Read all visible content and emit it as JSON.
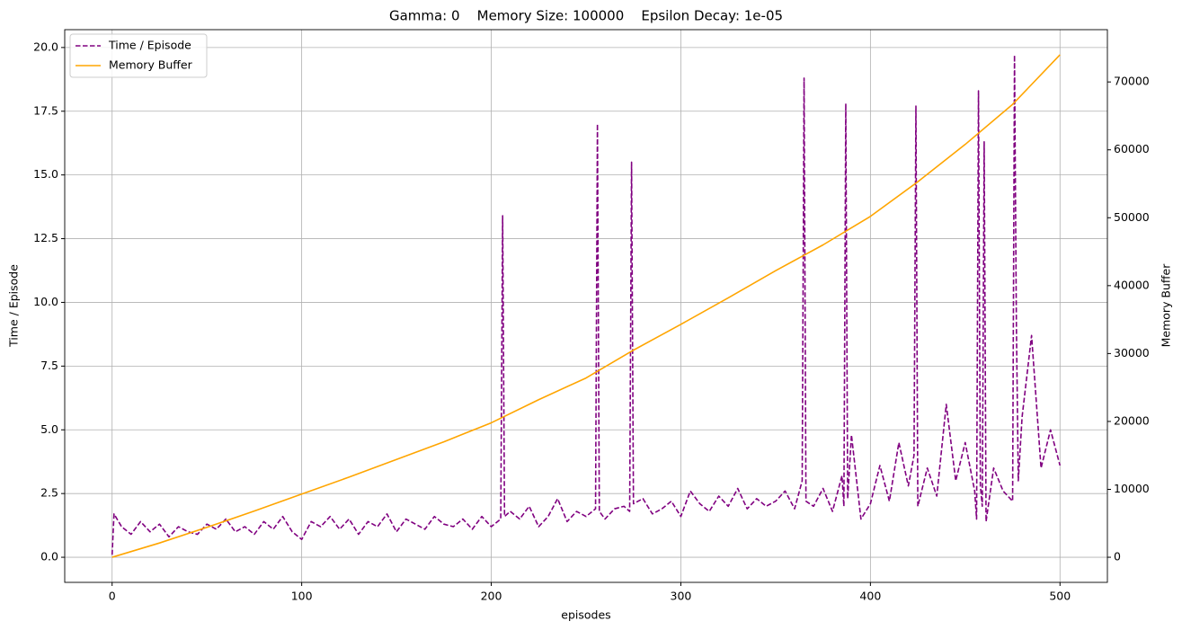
{
  "chart_data": {
    "type": "line",
    "title": "Gamma: 0    Memory Size: 100000    Epsilon Decay: 1e-05",
    "xlabel": "episodes",
    "ylabel": "Time / Episode",
    "y2label": "Memory Buffer",
    "xlim": [
      -25,
      525
    ],
    "xticks": [
      0,
      100,
      200,
      300,
      400,
      500
    ],
    "ylim": [
      -0.985,
      20.7
    ],
    "yticks": [
      {
        "value": 0,
        "label": "0.0"
      },
      2.5,
      {
        "value": 5,
        "label": "5.0"
      },
      7.5,
      {
        "value": 10,
        "label": "10.0"
      },
      12.5,
      {
        "value": 15,
        "label": "15.0"
      },
      17.5,
      {
        "value": 20,
        "label": "20.0"
      }
    ],
    "y2lim": [
      -3700,
      77700
    ],
    "y2ticks": [
      0,
      10000,
      20000,
      30000,
      40000,
      50000,
      60000,
      70000
    ],
    "grid": true,
    "legend": "upper left",
    "series": [
      {
        "name": "Time / Episode",
        "color": "#800080",
        "dashed": true,
        "x": [
          0,
          1,
          5,
          10,
          15,
          20,
          25,
          30,
          35,
          40,
          45,
          50,
          55,
          60,
          65,
          70,
          75,
          80,
          85,
          90,
          95,
          100,
          105,
          110,
          115,
          120,
          125,
          130,
          135,
          140,
          145,
          150,
          155,
          160,
          165,
          170,
          175,
          180,
          185,
          190,
          195,
          200,
          205,
          206,
          207,
          210,
          215,
          220,
          225,
          230,
          235,
          240,
          245,
          250,
          255,
          256,
          257,
          260,
          265,
          270,
          273,
          274,
          275,
          280,
          285,
          290,
          295,
          300,
          305,
          310,
          315,
          320,
          325,
          330,
          335,
          340,
          345,
          350,
          355,
          360,
          364,
          365,
          366,
          370,
          375,
          380,
          385,
          386,
          387,
          388,
          390,
          395,
          400,
          405,
          410,
          415,
          420,
          423,
          424,
          425,
          430,
          435,
          440,
          445,
          450,
          455,
          456,
          457,
          458,
          459,
          460,
          461,
          465,
          470,
          475,
          476,
          477,
          478,
          480,
          485,
          490,
          495,
          500
        ],
        "values": [
          0.1,
          1.7,
          1.2,
          0.9,
          1.4,
          1.0,
          1.3,
          0.8,
          1.2,
          1.0,
          0.9,
          1.3,
          1.1,
          1.5,
          1.0,
          1.2,
          0.9,
          1.4,
          1.1,
          1.6,
          1.0,
          0.7,
          1.4,
          1.2,
          1.6,
          1.1,
          1.5,
          0.9,
          1.4,
          1.2,
          1.7,
          1.0,
          1.5,
          1.3,
          1.1,
          1.6,
          1.3,
          1.2,
          1.5,
          1.1,
          1.6,
          1.2,
          1.5,
          13.4,
          1.6,
          1.8,
          1.5,
          2.0,
          1.2,
          1.6,
          2.3,
          1.4,
          1.8,
          1.6,
          1.9,
          17.0,
          1.8,
          1.5,
          1.9,
          2.0,
          1.8,
          15.5,
          2.1,
          2.3,
          1.7,
          1.9,
          2.2,
          1.6,
          2.6,
          2.1,
          1.8,
          2.4,
          2.0,
          2.7,
          1.9,
          2.3,
          2.0,
          2.2,
          2.6,
          1.9,
          3.0,
          18.8,
          2.2,
          2.0,
          2.7,
          1.8,
          3.2,
          2.0,
          17.8,
          2.3,
          4.8,
          1.5,
          2.1,
          3.6,
          2.2,
          4.5,
          2.8,
          4.0,
          17.7,
          2.0,
          3.5,
          2.4,
          6.0,
          3.0,
          4.5,
          2.6,
          1.5,
          18.3,
          2.8,
          2.0,
          16.3,
          1.4,
          3.5,
          2.6,
          2.2,
          19.7,
          9.1,
          3.0,
          5.5,
          8.7,
          3.5,
          5.0,
          3.6
        ]
      },
      {
        "name": "Memory Buffer",
        "color": "#ffa500",
        "axis": "y2",
        "x": [
          0,
          25,
          50,
          75,
          100,
          125,
          150,
          175,
          200,
          225,
          250,
          275,
          300,
          325,
          350,
          375,
          400,
          425,
          450,
          475,
          500
        ],
        "values": [
          0,
          2100,
          4400,
          6800,
          9300,
          11800,
          14400,
          17000,
          19800,
          23200,
          26400,
          30500,
          34300,
          38200,
          42200,
          46000,
          50200,
          55300,
          60800,
          66700,
          74000
        ]
      }
    ]
  }
}
